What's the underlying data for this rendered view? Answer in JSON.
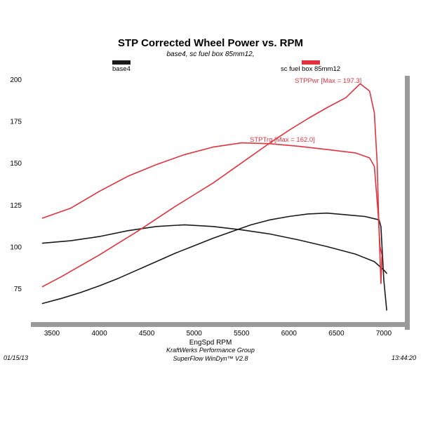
{
  "chart_data": {
    "type": "line",
    "title": "STP Corrected Wheel Power vs. RPM",
    "subtitle": "base4, sc fuel box 85mm12,",
    "xlabel": "EngSpd  RPM",
    "ylabel": "",
    "xlim": [
      3350,
      7100
    ],
    "ylim": [
      65,
      205
    ],
    "x_ticks": [
      3500,
      4000,
      4500,
      5000,
      5500,
      6000,
      6500,
      7000
    ],
    "y_ticks": [
      75,
      100,
      125,
      150,
      175,
      200
    ],
    "grid": false,
    "legend": [
      {
        "label": "base4",
        "color": "#1a1a1a"
      },
      {
        "label": "sc fuel box 85mm12",
        "color": "#e0333f"
      }
    ],
    "annotations": [
      {
        "text": "STPPwr [Max = 197.3]",
        "color": "#e0333f"
      },
      {
        "text": "STPTrq [Max = 162.0]",
        "color": "#e0333f"
      }
    ],
    "series": [
      {
        "name": "base4",
        "color": "#1a1a1a",
        "points": [
          [
            3400,
            66
          ],
          [
            3600,
            69
          ],
          [
            3800,
            72.5
          ],
          [
            4000,
            76.5
          ],
          [
            4200,
            81
          ],
          [
            4400,
            86
          ],
          [
            4600,
            91
          ],
          [
            4800,
            96
          ],
          [
            5000,
            100.5
          ],
          [
            5200,
            105
          ],
          [
            5400,
            109
          ],
          [
            5600,
            113
          ],
          [
            5800,
            116
          ],
          [
            6000,
            118
          ],
          [
            6200,
            119.5
          ],
          [
            6400,
            120
          ],
          [
            6600,
            119
          ],
          [
            6800,
            118
          ],
          [
            6950,
            116
          ],
          [
            6970,
            112
          ],
          [
            7000,
            80
          ],
          [
            7030,
            62
          ]
        ]
      },
      {
        "name": "base4",
        "color": "#1a1a1a",
        "points": [
          [
            3400,
            102
          ],
          [
            3700,
            103.5
          ],
          [
            4000,
            106
          ],
          [
            4300,
            109.5
          ],
          [
            4600,
            112
          ],
          [
            4900,
            113
          ],
          [
            5200,
            112
          ],
          [
            5500,
            110
          ],
          [
            5800,
            107.5
          ],
          [
            6100,
            104
          ],
          [
            6400,
            100
          ],
          [
            6700,
            95.5
          ],
          [
            6900,
            91
          ],
          [
            7000,
            86
          ],
          [
            7030,
            84
          ]
        ]
      },
      {
        "name": "sc fuel box 85mm12",
        "color": "#e0333f",
        "points": [
          [
            3400,
            76
          ],
          [
            3600,
            82
          ],
          [
            3800,
            88.5
          ],
          [
            4000,
            95
          ],
          [
            4200,
            102
          ],
          [
            4400,
            109
          ],
          [
            4600,
            116.5
          ],
          [
            4800,
            124
          ],
          [
            5000,
            131
          ],
          [
            5200,
            138
          ],
          [
            5400,
            146
          ],
          [
            5600,
            154
          ],
          [
            5800,
            162
          ],
          [
            6000,
            169.5
          ],
          [
            6200,
            176.5
          ],
          [
            6400,
            183
          ],
          [
            6600,
            189
          ],
          [
            6750,
            197.3
          ],
          [
            6850,
            193
          ],
          [
            6900,
            180
          ],
          [
            6930,
            150
          ],
          [
            6950,
            110
          ],
          [
            6970,
            78
          ]
        ]
      },
      {
        "name": "sc fuel box 85mm12",
        "color": "#e0333f",
        "points": [
          [
            3400,
            117
          ],
          [
            3700,
            123
          ],
          [
            4000,
            133
          ],
          [
            4300,
            142
          ],
          [
            4600,
            149
          ],
          [
            4900,
            155
          ],
          [
            5200,
            159.5
          ],
          [
            5500,
            162
          ],
          [
            5800,
            161.5
          ],
          [
            6100,
            160
          ],
          [
            6400,
            158
          ],
          [
            6700,
            156
          ],
          [
            6850,
            153
          ],
          [
            6900,
            148
          ],
          [
            6940,
            120
          ],
          [
            6960,
            100
          ],
          [
            6980,
            95
          ],
          [
            6970,
            78
          ]
        ]
      }
    ]
  },
  "footer": {
    "date": "01/15/13",
    "company": "KraftWerks Performance Group",
    "software": "SuperFlow WinDyn™ V2.8",
    "time": "13:44:20"
  }
}
